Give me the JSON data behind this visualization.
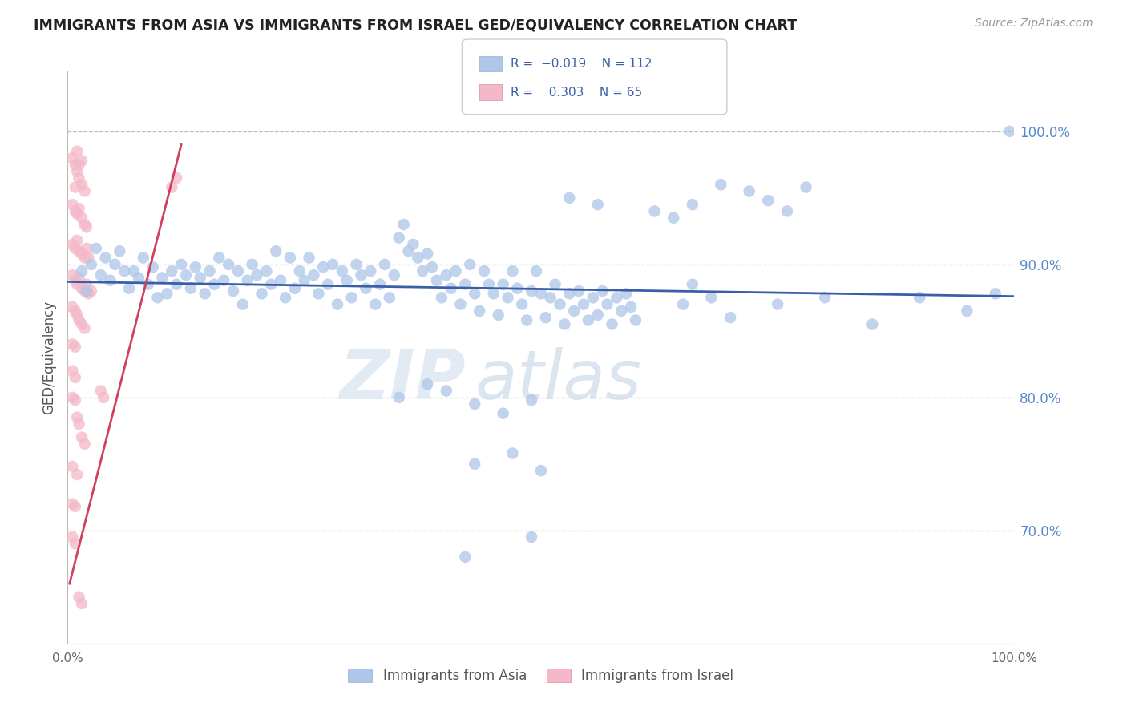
{
  "title": "IMMIGRANTS FROM ASIA VS IMMIGRANTS FROM ISRAEL GED/EQUIVALENCY CORRELATION CHART",
  "source": "Source: ZipAtlas.com",
  "ylabel": "GED/Equivalency",
  "xlim": [
    0,
    1.0
  ],
  "ylim": [
    0.615,
    1.045
  ],
  "y_tick_positions_right": [
    1.0,
    0.9,
    0.8,
    0.7
  ],
  "y_tick_labels_right": [
    "100.0%",
    "90.0%",
    "80.0%",
    "70.0%"
  ],
  "legend_label1": "Immigrants from Asia",
  "legend_label2": "Immigrants from Israel",
  "blue_color": "#aec6e8",
  "pink_color": "#f4b8c8",
  "trend_blue": "#3a5fa8",
  "trend_pink": "#d04060",
  "watermark_zip": "ZIP",
  "watermark_atlas": "atlas",
  "asia_scatter": [
    [
      0.015,
      0.895
    ],
    [
      0.02,
      0.88
    ],
    [
      0.025,
      0.9
    ],
    [
      0.03,
      0.912
    ],
    [
      0.035,
      0.892
    ],
    [
      0.04,
      0.905
    ],
    [
      0.045,
      0.888
    ],
    [
      0.05,
      0.9
    ],
    [
      0.055,
      0.91
    ],
    [
      0.06,
      0.895
    ],
    [
      0.065,
      0.882
    ],
    [
      0.07,
      0.895
    ],
    [
      0.075,
      0.89
    ],
    [
      0.08,
      0.905
    ],
    [
      0.085,
      0.885
    ],
    [
      0.09,
      0.898
    ],
    [
      0.095,
      0.875
    ],
    [
      0.1,
      0.89
    ],
    [
      0.105,
      0.878
    ],
    [
      0.11,
      0.895
    ],
    [
      0.115,
      0.885
    ],
    [
      0.12,
      0.9
    ],
    [
      0.125,
      0.892
    ],
    [
      0.13,
      0.882
    ],
    [
      0.135,
      0.898
    ],
    [
      0.14,
      0.89
    ],
    [
      0.145,
      0.878
    ],
    [
      0.15,
      0.895
    ],
    [
      0.155,
      0.885
    ],
    [
      0.16,
      0.905
    ],
    [
      0.165,
      0.888
    ],
    [
      0.17,
      0.9
    ],
    [
      0.175,
      0.88
    ],
    [
      0.18,
      0.895
    ],
    [
      0.185,
      0.87
    ],
    [
      0.19,
      0.888
    ],
    [
      0.195,
      0.9
    ],
    [
      0.2,
      0.892
    ],
    [
      0.205,
      0.878
    ],
    [
      0.21,
      0.895
    ],
    [
      0.215,
      0.885
    ],
    [
      0.22,
      0.91
    ],
    [
      0.225,
      0.888
    ],
    [
      0.23,
      0.875
    ],
    [
      0.235,
      0.905
    ],
    [
      0.24,
      0.882
    ],
    [
      0.245,
      0.895
    ],
    [
      0.25,
      0.888
    ],
    [
      0.255,
      0.905
    ],
    [
      0.26,
      0.892
    ],
    [
      0.265,
      0.878
    ],
    [
      0.27,
      0.898
    ],
    [
      0.275,
      0.885
    ],
    [
      0.28,
      0.9
    ],
    [
      0.285,
      0.87
    ],
    [
      0.29,
      0.895
    ],
    [
      0.295,
      0.888
    ],
    [
      0.3,
      0.875
    ],
    [
      0.305,
      0.9
    ],
    [
      0.31,
      0.892
    ],
    [
      0.315,
      0.882
    ],
    [
      0.32,
      0.895
    ],
    [
      0.325,
      0.87
    ],
    [
      0.33,
      0.885
    ],
    [
      0.335,
      0.9
    ],
    [
      0.34,
      0.875
    ],
    [
      0.345,
      0.892
    ],
    [
      0.35,
      0.92
    ],
    [
      0.355,
      0.93
    ],
    [
      0.36,
      0.91
    ],
    [
      0.365,
      0.915
    ],
    [
      0.37,
      0.905
    ],
    [
      0.375,
      0.895
    ],
    [
      0.38,
      0.908
    ],
    [
      0.385,
      0.898
    ],
    [
      0.39,
      0.888
    ],
    [
      0.395,
      0.875
    ],
    [
      0.4,
      0.892
    ],
    [
      0.405,
      0.882
    ],
    [
      0.41,
      0.895
    ],
    [
      0.415,
      0.87
    ],
    [
      0.42,
      0.885
    ],
    [
      0.425,
      0.9
    ],
    [
      0.43,
      0.878
    ],
    [
      0.435,
      0.865
    ],
    [
      0.44,
      0.895
    ],
    [
      0.445,
      0.885
    ],
    [
      0.45,
      0.878
    ],
    [
      0.455,
      0.862
    ],
    [
      0.46,
      0.885
    ],
    [
      0.465,
      0.875
    ],
    [
      0.47,
      0.895
    ],
    [
      0.475,
      0.882
    ],
    [
      0.48,
      0.87
    ],
    [
      0.485,
      0.858
    ],
    [
      0.49,
      0.88
    ],
    [
      0.495,
      0.895
    ],
    [
      0.5,
      0.878
    ],
    [
      0.505,
      0.86
    ],
    [
      0.51,
      0.875
    ],
    [
      0.515,
      0.885
    ],
    [
      0.52,
      0.87
    ],
    [
      0.525,
      0.855
    ],
    [
      0.53,
      0.878
    ],
    [
      0.535,
      0.865
    ],
    [
      0.54,
      0.88
    ],
    [
      0.545,
      0.87
    ],
    [
      0.55,
      0.858
    ],
    [
      0.555,
      0.875
    ],
    [
      0.56,
      0.862
    ],
    [
      0.565,
      0.88
    ],
    [
      0.57,
      0.87
    ],
    [
      0.575,
      0.855
    ],
    [
      0.58,
      0.875
    ],
    [
      0.585,
      0.865
    ],
    [
      0.59,
      0.878
    ],
    [
      0.595,
      0.868
    ],
    [
      0.6,
      0.858
    ],
    [
      0.65,
      0.87
    ],
    [
      0.66,
      0.885
    ],
    [
      0.68,
      0.875
    ],
    [
      0.7,
      0.86
    ],
    [
      0.75,
      0.87
    ],
    [
      0.8,
      0.875
    ],
    [
      0.85,
      0.855
    ],
    [
      0.9,
      0.875
    ],
    [
      0.95,
      0.865
    ],
    [
      0.98,
      0.878
    ],
    [
      0.62,
      0.94
    ],
    [
      0.64,
      0.935
    ],
    [
      0.66,
      0.945
    ],
    [
      0.69,
      0.96
    ],
    [
      0.72,
      0.955
    ],
    [
      0.74,
      0.948
    ],
    [
      0.76,
      0.94
    ],
    [
      0.78,
      0.958
    ],
    [
      0.53,
      0.95
    ],
    [
      0.56,
      0.945
    ],
    [
      0.35,
      0.8
    ],
    [
      0.38,
      0.81
    ],
    [
      0.4,
      0.805
    ],
    [
      0.43,
      0.795
    ],
    [
      0.46,
      0.788
    ],
    [
      0.49,
      0.798
    ],
    [
      0.43,
      0.75
    ],
    [
      0.47,
      0.758
    ],
    [
      0.5,
      0.745
    ],
    [
      0.42,
      0.68
    ],
    [
      0.49,
      0.695
    ],
    [
      0.995,
      1.0
    ]
  ],
  "israel_scatter": [
    [
      0.005,
      0.98
    ],
    [
      0.008,
      0.975
    ],
    [
      0.01,
      0.97
    ],
    [
      0.012,
      0.965
    ],
    [
      0.015,
      0.96
    ],
    [
      0.018,
      0.955
    ],
    [
      0.008,
      0.958
    ],
    [
      0.012,
      0.975
    ],
    [
      0.01,
      0.985
    ],
    [
      0.015,
      0.978
    ],
    [
      0.005,
      0.945
    ],
    [
      0.008,
      0.94
    ],
    [
      0.01,
      0.938
    ],
    [
      0.012,
      0.942
    ],
    [
      0.015,
      0.935
    ],
    [
      0.018,
      0.93
    ],
    [
      0.02,
      0.928
    ],
    [
      0.005,
      0.915
    ],
    [
      0.008,
      0.912
    ],
    [
      0.01,
      0.918
    ],
    [
      0.012,
      0.91
    ],
    [
      0.015,
      0.908
    ],
    [
      0.018,
      0.905
    ],
    [
      0.02,
      0.912
    ],
    [
      0.022,
      0.905
    ],
    [
      0.005,
      0.892
    ],
    [
      0.008,
      0.888
    ],
    [
      0.01,
      0.885
    ],
    [
      0.012,
      0.89
    ],
    [
      0.015,
      0.882
    ],
    [
      0.018,
      0.88
    ],
    [
      0.02,
      0.885
    ],
    [
      0.022,
      0.878
    ],
    [
      0.025,
      0.88
    ],
    [
      0.005,
      0.868
    ],
    [
      0.008,
      0.865
    ],
    [
      0.01,
      0.862
    ],
    [
      0.012,
      0.858
    ],
    [
      0.015,
      0.855
    ],
    [
      0.018,
      0.852
    ],
    [
      0.005,
      0.84
    ],
    [
      0.008,
      0.838
    ],
    [
      0.005,
      0.82
    ],
    [
      0.008,
      0.815
    ],
    [
      0.005,
      0.8
    ],
    [
      0.008,
      0.798
    ],
    [
      0.01,
      0.785
    ],
    [
      0.012,
      0.78
    ],
    [
      0.015,
      0.77
    ],
    [
      0.018,
      0.765
    ],
    [
      0.005,
      0.748
    ],
    [
      0.01,
      0.742
    ],
    [
      0.005,
      0.72
    ],
    [
      0.008,
      0.718
    ],
    [
      0.005,
      0.695
    ],
    [
      0.008,
      0.69
    ],
    [
      0.012,
      0.65
    ],
    [
      0.015,
      0.645
    ],
    [
      0.035,
      0.805
    ],
    [
      0.038,
      0.8
    ],
    [
      0.11,
      0.958
    ],
    [
      0.115,
      0.965
    ]
  ],
  "blue_trend_x": [
    0.0,
    1.0
  ],
  "blue_trend_y": [
    0.887,
    0.876
  ],
  "pink_trend_x": [
    0.002,
    0.12
  ],
  "pink_trend_y": [
    0.66,
    0.99
  ]
}
